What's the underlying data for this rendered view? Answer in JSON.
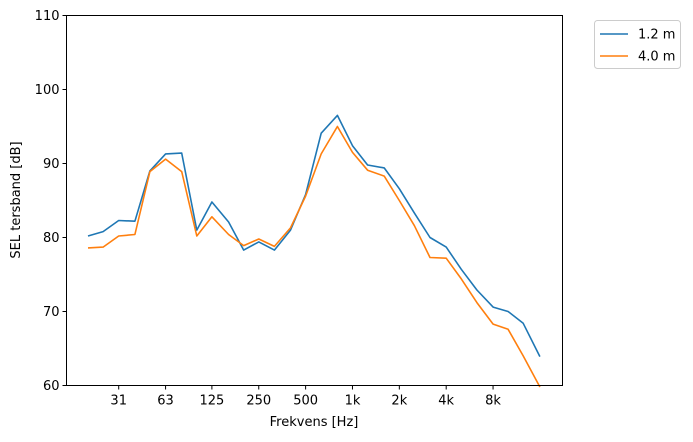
{
  "chart_data": {
    "type": "line",
    "title": "",
    "xlabel": "Frekvens [Hz]",
    "ylabel": "SEL tersband [dB]",
    "ylim": [
      60,
      110
    ],
    "yticks": [
      60,
      70,
      80,
      90,
      100,
      110
    ],
    "x_scale": "log (third-octave bands)",
    "x": [
      20,
      25,
      31.5,
      40,
      50,
      63,
      80,
      100,
      125,
      160,
      200,
      250,
      315,
      400,
      500,
      630,
      800,
      1000,
      1250,
      1600,
      2000,
      2500,
      3150,
      4000,
      5000,
      6300,
      8000,
      10000,
      12500,
      16000
    ],
    "xticks": [
      {
        "value": 31.5,
        "label": "31"
      },
      {
        "value": 63,
        "label": "63"
      },
      {
        "value": 125,
        "label": "125"
      },
      {
        "value": 250,
        "label": "250"
      },
      {
        "value": 500,
        "label": "500"
      },
      {
        "value": 1000,
        "label": "1k"
      },
      {
        "value": 2000,
        "label": "2k"
      },
      {
        "value": 4000,
        "label": "4k"
      },
      {
        "value": 8000,
        "label": "8k"
      }
    ],
    "grid": false,
    "legend_position": "outside-top-right",
    "series": [
      {
        "name": "1.2 m",
        "color": "#1f77b4",
        "values": [
          80.2,
          80.8,
          82.3,
          82.2,
          89.0,
          91.3,
          91.4,
          81.0,
          84.8,
          82.1,
          78.3,
          79.4,
          78.3,
          81.0,
          85.8,
          94.1,
          96.5,
          92.4,
          89.8,
          89.4,
          86.6,
          83.3,
          80.0,
          78.7,
          75.7,
          72.9,
          70.6,
          70.0,
          68.4,
          63.9
        ]
      },
      {
        "name": "4.0 m",
        "color": "#ff7f0e",
        "values": [
          78.6,
          78.7,
          80.2,
          80.4,
          88.9,
          90.6,
          88.9,
          80.2,
          82.8,
          80.4,
          78.9,
          79.8,
          78.8,
          81.3,
          85.6,
          91.3,
          95.0,
          91.5,
          89.1,
          88.3,
          85.0,
          81.6,
          77.3,
          77.2,
          74.4,
          71.2,
          68.3,
          67.6,
          64.0,
          59.8
        ]
      }
    ]
  }
}
